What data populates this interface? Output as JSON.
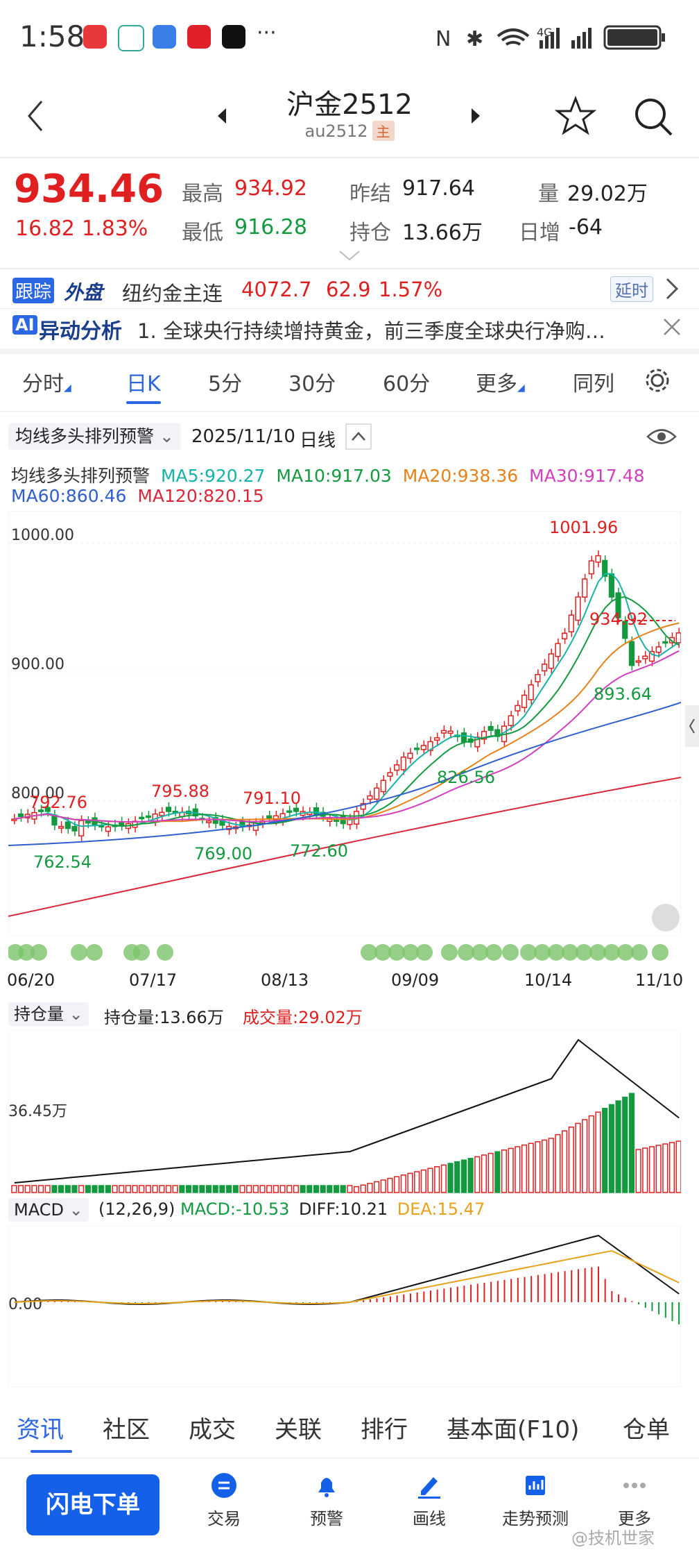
{
  "status_bar": {
    "time": "1:58",
    "dots": "···",
    "network": "4G"
  },
  "header": {
    "title": "沪金2512",
    "code": "au2512",
    "badge": "主"
  },
  "quote": {
    "price": "934.46",
    "change": "16.82",
    "change_pct": "1.83%",
    "high_label": "最高",
    "high": "934.92",
    "low_label": "最低",
    "low": "916.28",
    "prev_close_label": "昨结",
    "prev_close": "917.64",
    "open_int_label": "持仓",
    "open_int": "13.66万",
    "volume_label": "量",
    "volume": "29.02万",
    "daily_inc_label": "日增",
    "daily_inc": "-64"
  },
  "tracking": {
    "badge1": "跟踪",
    "badge2": "外盘",
    "name": "纽约金主连",
    "price": "4072.7",
    "chg": "62.9",
    "pct": "1.57%",
    "delay": "延时"
  },
  "ai_analysis": {
    "badge": "AI",
    "label": "异动分析",
    "text": "1. 全球央行持续增持黄金，前三季度全球央行净购…"
  },
  "tabs": [
    "分时",
    "日K",
    "5分",
    "30分",
    "60分",
    "更多",
    "同列"
  ],
  "active_tab": "日K",
  "chart_header": {
    "indicator": "均线多头排列预警",
    "date": "2025/11/10",
    "period": "日线"
  },
  "ma_row": {
    "title": "均线多头排列预警",
    "ma5": "MA5:920.27",
    "ma10": "MA10:917.03",
    "ma20": "MA20:938.36",
    "ma30": "MA30:917.48",
    "ma60": "MA60:860.46",
    "ma120": "MA120:820.15"
  },
  "price_labels": {
    "y1000": "1000.00",
    "y900": "900.00",
    "y800": "800.00",
    "peak": "1001.96",
    "last_high": "934.92",
    "low1": "893.64",
    "low2": "826.56",
    "a": "792.76",
    "b": "795.88",
    "c": "791.10",
    "d": "762.54",
    "e": "769.00",
    "f": "772.60"
  },
  "date_axis": [
    "06/20",
    "07/17",
    "08/13",
    "09/09",
    "10/14",
    "11/10"
  ],
  "volume_header": {
    "selector": "持仓量",
    "oi": "持仓量:13.66万",
    "vol": "成交量:29.02万",
    "axis": "36.45万"
  },
  "macd_header": {
    "selector": "MACD",
    "params": "(12,26,9)",
    "macd": "MACD:-10.53",
    "diff": "DIFF:10.21",
    "dea": "DEA:15.47",
    "zero": "0.00"
  },
  "bottom_tabs": [
    "资讯",
    "社区",
    "成交",
    "关联",
    "排行",
    "基本面(F10)",
    "仓单"
  ],
  "nav": {
    "flash": "闪电下单",
    "items": [
      "交易",
      "预警",
      "画线",
      "走势预测",
      "更多"
    ]
  },
  "watermark": "@技机世家",
  "colors": {
    "up": "#e02020",
    "down": "#139a3f",
    "ma5": "#16b3a8",
    "ma10": "#139a3f",
    "ma20": "#e8811a",
    "ma30": "#d23fbf",
    "ma60": "#2f5fcf",
    "ma120": "#d8283a",
    "accent": "#1560e8"
  }
}
